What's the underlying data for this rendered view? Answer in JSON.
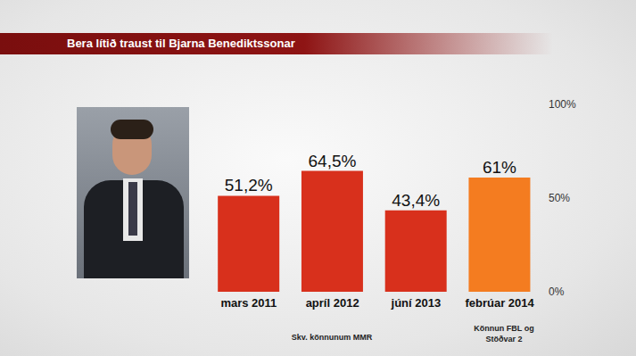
{
  "chart_data": {
    "type": "bar",
    "title": "Bera lítið traust til Bjarna Benediktssonar",
    "categories": [
      "mars 2011",
      "apríl 2012",
      "júní 2013",
      "febrúar 2014"
    ],
    "values": [
      51.2,
      64.5,
      43.4,
      61
    ],
    "value_labels": [
      "51,2%",
      "64,5%",
      "43,4%",
      "61%"
    ],
    "colors": [
      "#d8301c",
      "#d8301c",
      "#d8301c",
      "#f47c20"
    ],
    "ylim": [
      0,
      100
    ],
    "yticks": [
      {
        "value": 0,
        "label": "0%"
      },
      {
        "value": 50,
        "label": "50%"
      },
      {
        "value": 100,
        "label": "100%"
      }
    ],
    "data_labels": true,
    "grid": false,
    "annotations": [
      "Skv. könnunum MMR",
      "Könnun FBL og Stöðvar 2"
    ]
  }
}
